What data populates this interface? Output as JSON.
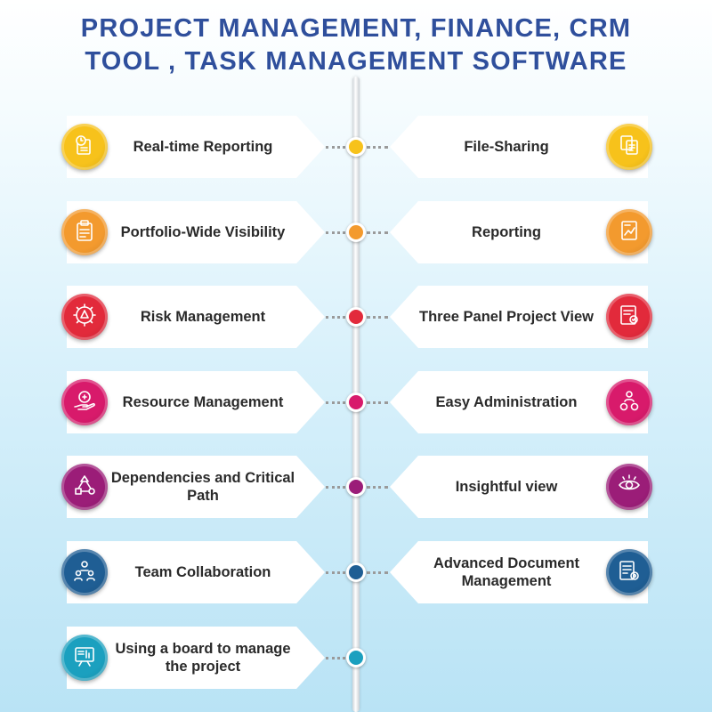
{
  "title": {
    "line1": "PROJECT MANAGEMENT, FINANCE, CRM",
    "line2": "TOOL , TASK MANAGEMENT SOFTWARE"
  },
  "rows": [
    {
      "color": "#f7c21b",
      "left": {
        "label": "Real-time Reporting",
        "icon": "report-clock-icon"
      },
      "right": {
        "label": "File-Sharing",
        "icon": "file-sharing-icon"
      }
    },
    {
      "color": "#f39a2e",
      "left": {
        "label": "Portfolio-Wide Visibility",
        "icon": "clipboard-icon"
      },
      "right": {
        "label": "Reporting",
        "icon": "report-chart-icon"
      }
    },
    {
      "color": "#e22a3b",
      "left": {
        "label": "Risk Management",
        "icon": "risk-gear-icon"
      },
      "right": {
        "label": "Three Panel Project View",
        "icon": "certificate-icon"
      }
    },
    {
      "color": "#d81a6b",
      "left": {
        "label": "Resource Management",
        "icon": "resource-hand-icon"
      },
      "right": {
        "label": "Easy Administration",
        "icon": "admin-gears-icon"
      }
    },
    {
      "color": "#9b1d78",
      "left": {
        "label": "Dependencies and Critical Path",
        "icon": "flow-diagram-icon"
      },
      "right": {
        "label": "Insightful view",
        "icon": "eye-icon"
      }
    },
    {
      "color": "#1f5e94",
      "left": {
        "label": "Team Collaboration",
        "icon": "team-icon"
      },
      "right": {
        "label": "Advanced Document Management",
        "icon": "document-gear-icon"
      }
    },
    {
      "color": "#1ba0bf",
      "left": {
        "label": "Using a board to manage the project",
        "icon": "board-icon"
      },
      "right": null
    }
  ]
}
